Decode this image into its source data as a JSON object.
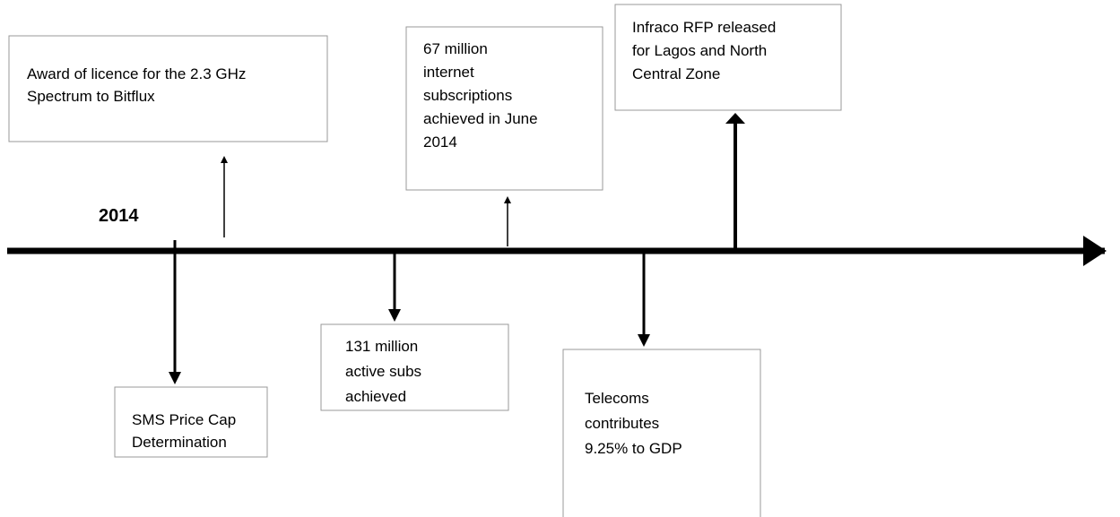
{
  "year": "2014",
  "events": [
    {
      "lines": [
        "Award of licence for the 2.3 GHz",
        "Spectrum to Bitflux"
      ]
    },
    {
      "lines": [
        "67 million",
        "internet",
        "subscriptions",
        "achieved in June",
        "2014"
      ]
    },
    {
      "lines": [
        "Infraco RFP released",
        "for Lagos and North",
        "Central Zone"
      ]
    },
    {
      "lines": [
        "SMS Price Cap",
        "Determination"
      ]
    },
    {
      "lines": [
        "131 million",
        "active subs",
        "achieved"
      ]
    },
    {
      "lines": [
        "Telecoms",
        "contributes",
        "9.25% to GDP"
      ]
    }
  ]
}
